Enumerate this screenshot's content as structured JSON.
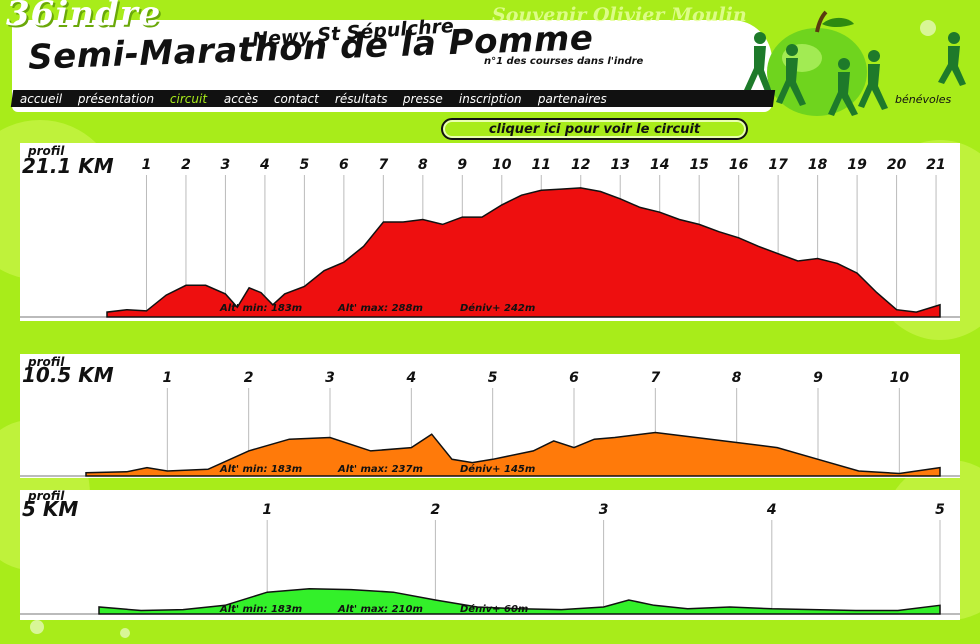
{
  "site": {
    "corner_text": "36indre",
    "souvenir_text": "Souvenir Olivier Moulin",
    "town": "Newy St Sépulchre",
    "title": "Semi-Marathon de la Pomme",
    "tagline": "n°1 des courses dans l'indre",
    "benevoles": "bénévoles"
  },
  "nav": {
    "items": [
      {
        "label": "accueil"
      },
      {
        "label": "présentation"
      },
      {
        "label": "circuit"
      },
      {
        "label": "accès"
      },
      {
        "label": "contact"
      },
      {
        "label": "résultats"
      },
      {
        "label": "presse"
      },
      {
        "label": "inscription"
      },
      {
        "label": "partenaires"
      }
    ],
    "active_index": 2
  },
  "circuit_button": "cliquer ici pour voir le circuit",
  "colors": {
    "frame": "#a8ec1a",
    "red": "#ee0f0f",
    "orange": "#ff7a0a",
    "green": "#33f02a",
    "nav_active": "#a8ec1a"
  },
  "chart_data": [
    {
      "type": "area",
      "profil_label": "profil",
      "distance_label": "21.1 KM",
      "km_marks": [
        "1",
        "2",
        "3",
        "4",
        "5",
        "6",
        "7",
        "8",
        "9",
        "10",
        "11",
        "12",
        "13",
        "14",
        "15",
        "16",
        "17",
        "18",
        "19",
        "20",
        "21"
      ],
      "x": [
        0,
        0.5,
        1,
        1.5,
        2,
        2.5,
        3,
        3.3,
        3.6,
        3.9,
        4.2,
        4.5,
        5,
        5.5,
        6,
        6.5,
        7,
        7.5,
        8,
        8.5,
        9,
        9.5,
        10,
        10.5,
        11,
        11.5,
        12,
        12.5,
        13,
        13.5,
        14,
        14.5,
        15,
        15.5,
        16,
        16.5,
        17,
        17.5,
        18,
        18.5,
        19,
        19.5,
        20,
        20.5,
        21.1
      ],
      "y": [
        184,
        186,
        185,
        198,
        206,
        206,
        199,
        188,
        204,
        200,
        190,
        199,
        205,
        218,
        225,
        238,
        258,
        258,
        260,
        256,
        262,
        262,
        272,
        280,
        284,
        285,
        286,
        283,
        277,
        270,
        266,
        260,
        256,
        250,
        245,
        238,
        232,
        226,
        228,
        224,
        216,
        200,
        186,
        184,
        190
      ],
      "stats": {
        "alt_min": "Alt' min: 183m",
        "alt_max": "Alt' max: 288m",
        "deniv": "Déniv+ 242m"
      }
    },
    {
      "type": "area",
      "profil_label": "profil",
      "distance_label": "10.5 KM",
      "km_marks": [
        "1",
        "2",
        "3",
        "4",
        "5",
        "6",
        "7",
        "8",
        "9",
        "10"
      ],
      "x": [
        0,
        0.5,
        0.75,
        1,
        1.5,
        2,
        2.5,
        3,
        3.5,
        4,
        4.25,
        4.5,
        4.75,
        5,
        5.5,
        5.75,
        6,
        6.25,
        6.5,
        7,
        7.5,
        8,
        8.5,
        9,
        9.5,
        10,
        10.5
      ],
      "y": [
        184,
        185,
        190,
        186,
        188,
        210,
        224,
        226,
        210,
        214,
        230,
        200,
        196,
        200,
        210,
        222,
        214,
        224,
        226,
        232,
        226,
        220,
        214,
        200,
        186,
        183,
        190
      ],
      "stats": {
        "alt_min": "Alt' min: 183m",
        "alt_max": "Alt' max: 237m",
        "deniv": "Déniv+ 145m"
      }
    },
    {
      "type": "area",
      "profil_label": "profil",
      "distance_label": "5 KM",
      "km_marks": [
        "1",
        "2",
        "3",
        "4",
        "5"
      ],
      "x": [
        0,
        0.25,
        0.5,
        0.75,
        1,
        1.25,
        1.5,
        1.75,
        2,
        2.25,
        2.5,
        2.75,
        3,
        3.15,
        3.3,
        3.5,
        3.75,
        4,
        4.25,
        4.5,
        4.75,
        5
      ],
      "y": [
        188,
        184,
        185,
        190,
        205,
        209,
        208,
        205,
        196,
        188,
        186,
        185,
        188,
        196,
        190,
        186,
        188,
        186,
        185,
        184,
        184,
        190
      ],
      "stats": {
        "alt_min": "Alt' min: 183m",
        "alt_max": "Alt' max: 210m",
        "deniv": "Déniv+ 60m"
      }
    }
  ]
}
